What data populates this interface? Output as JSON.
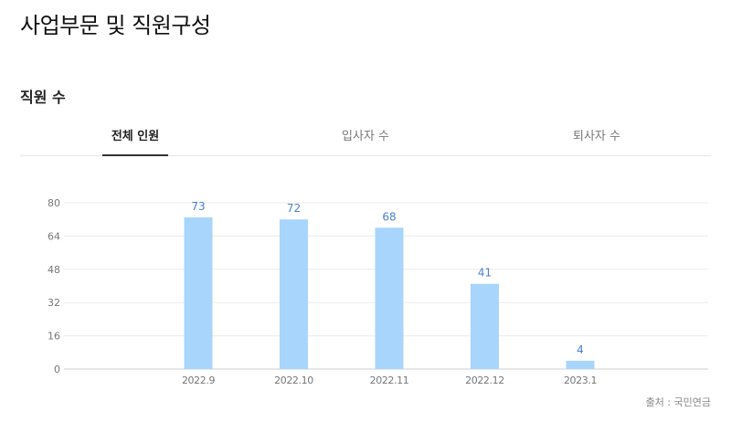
{
  "page": {
    "title": "사업부문 및 직원구성"
  },
  "section": {
    "title": "직원 수"
  },
  "tabs": [
    {
      "label": "전체 인원",
      "active": true
    },
    {
      "label": "입사자 수",
      "active": false
    },
    {
      "label": "퇴사자 수",
      "active": false
    }
  ],
  "chart_data": {
    "type": "bar",
    "categories": [
      "2022.9",
      "2022.10",
      "2022.11",
      "2022.12",
      "2023.1"
    ],
    "values": [
      73,
      72,
      68,
      41,
      4
    ],
    "ylim": [
      0,
      80
    ],
    "yticks": [
      0,
      16,
      32,
      48,
      64,
      80
    ],
    "grid": true,
    "bar_color": "#a8d5fb",
    "label_color": "#4a7fd0"
  },
  "source": "출처 : 국민연금"
}
